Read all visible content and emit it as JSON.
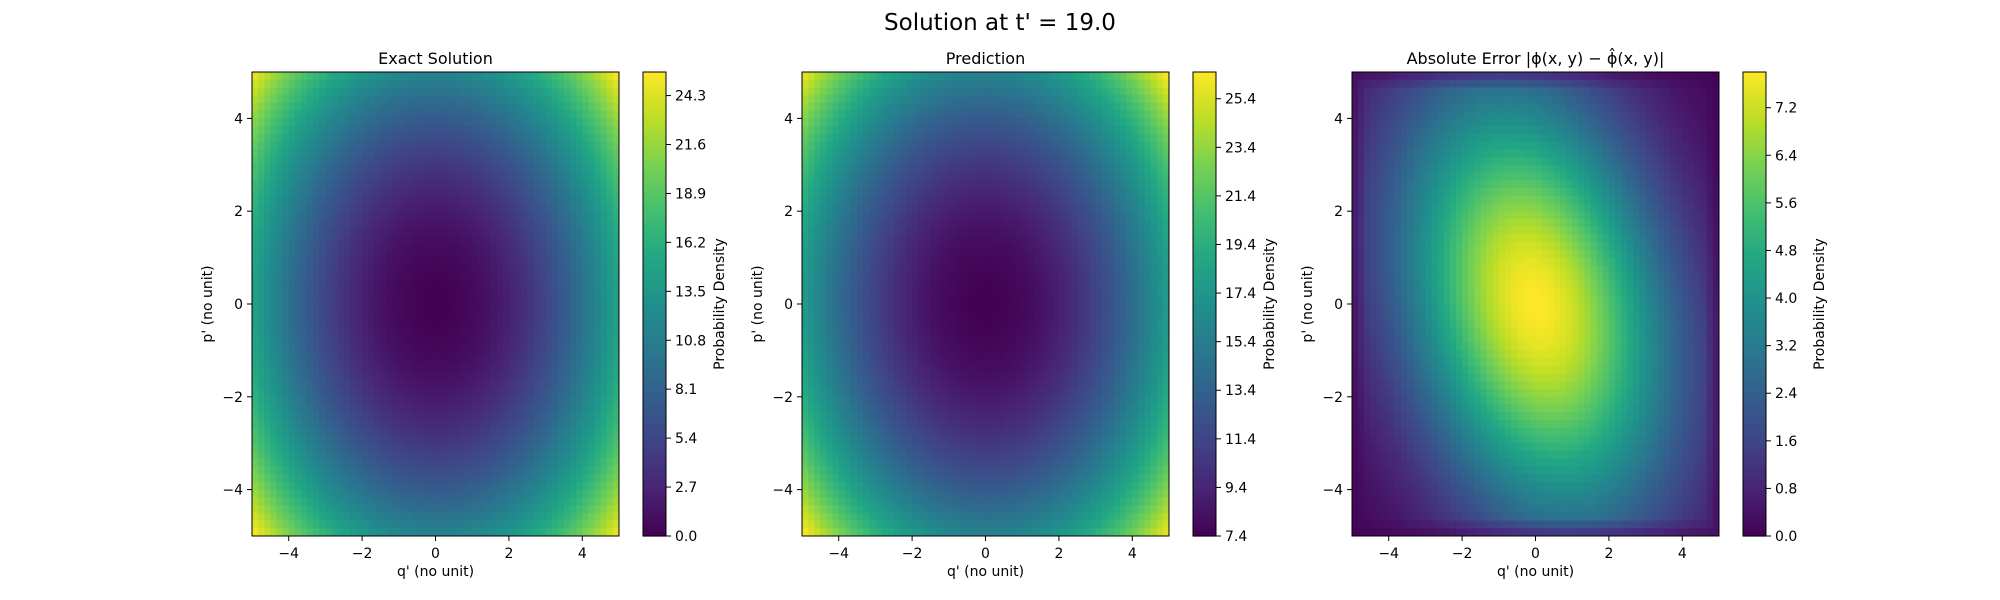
{
  "figure": {
    "suptitle": "Solution at t' = 19.0"
  },
  "chart_data": [
    {
      "type": "heatmap",
      "title": "Exact Solution",
      "xlabel": "q' (no unit)",
      "ylabel": "p' (no unit)",
      "xlim": [
        -5,
        5
      ],
      "ylim": [
        -5,
        5
      ],
      "xticks": [
        "−4",
        "−2",
        "0",
        "2",
        "4"
      ],
      "yticks": [
        "−4",
        "−2",
        "0",
        "2",
        "4"
      ],
      "colormap": "viridis",
      "grid": false,
      "colorbar": {
        "label": "Probability Density",
        "range": [
          0.0,
          25.6
        ],
        "ticks": [
          "0.0",
          "2.7",
          "5.4",
          "8.1",
          "10.8",
          "13.5",
          "16.2",
          "18.9",
          "21.6",
          "24.3"
        ]
      },
      "surface": {
        "model": "bowl",
        "min_value": 0.0,
        "min_at": [
          0,
          0
        ],
        "corner_value": 25.6,
        "edge_q_value": 15.0,
        "edge_p_value": 11.6,
        "shape": "quadratic, elongated along p'"
      }
    },
    {
      "type": "heatmap",
      "title": "Prediction",
      "xlabel": "q' (no unit)",
      "ylabel": "p' (no unit)",
      "xlim": [
        -5,
        5
      ],
      "ylim": [
        -5,
        5
      ],
      "xticks": [
        "−4",
        "−2",
        "0",
        "2",
        "4"
      ],
      "yticks": [
        "−4",
        "−2",
        "0",
        "2",
        "4"
      ],
      "colormap": "viridis",
      "grid": false,
      "colorbar": {
        "label": "Probability Density",
        "range": [
          7.4,
          26.5
        ],
        "ticks": [
          "7.4",
          "9.4",
          "11.4",
          "13.4",
          "15.4",
          "17.4",
          "19.4",
          "21.4",
          "23.4",
          "25.4"
        ]
      },
      "surface": {
        "model": "bowl",
        "min_value": 7.4,
        "min_at": [
          0,
          0
        ],
        "corner_value": 26.5,
        "edge_q_value": 18.0,
        "edge_p_value": 16.0,
        "shape": "quadratic, slightly tilted"
      }
    },
    {
      "type": "heatmap",
      "title": "Absolute Error |ϕ(x, y) − ϕ̂(x, y)|",
      "xlabel": "q' (no unit)",
      "ylabel": "p' (no unit)",
      "xlim": [
        -5,
        5
      ],
      "ylim": [
        -5,
        5
      ],
      "xticks": [
        "−4",
        "−2",
        "0",
        "2",
        "4"
      ],
      "yticks": [
        "−4",
        "−2",
        "0",
        "2",
        "4"
      ],
      "colormap": "viridis",
      "grid": false,
      "colorbar": {
        "label": "Probability Density",
        "range": [
          0.0,
          7.8
        ],
        "ticks": [
          "0.0",
          "0.8",
          "1.6",
          "2.4",
          "3.2",
          "4.0",
          "4.8",
          "5.6",
          "6.4",
          "7.2"
        ]
      },
      "surface": {
        "model": "peak",
        "max_value": 7.8,
        "peak_at": [
          0,
          0
        ],
        "edge_value": 0.0,
        "shape": "tilted ellipse, low near corners and edges"
      }
    }
  ]
}
